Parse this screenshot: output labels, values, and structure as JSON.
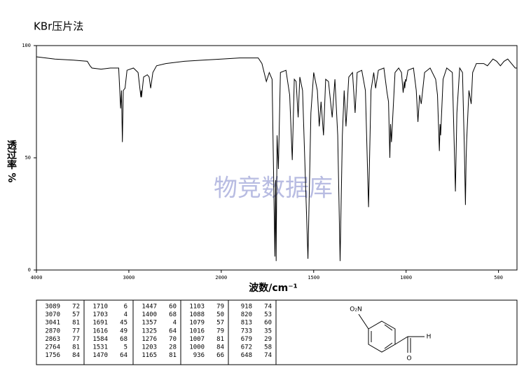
{
  "chart_data": {
    "type": "line",
    "title": "KBr压片法",
    "x_label": "波数/cm⁻¹",
    "y_label": "透过率 %",
    "watermark": "物竞数据库",
    "xlim": [
      4000,
      400
    ],
    "ylim": [
      0,
      100
    ],
    "xticks": [
      4000,
      3000,
      2000,
      1500,
      1000,
      500
    ],
    "yticks": [
      0,
      50,
      100
    ],
    "color": "#000000",
    "x": [
      4000,
      3800,
      3600,
      3450,
      3420,
      3400,
      3300,
      3200,
      3110,
      3089,
      3080,
      3070,
      3060,
      3041,
      3020,
      2950,
      2900,
      2870,
      2866,
      2863,
      2840,
      2800,
      2780,
      2764,
      2740,
      2700,
      2600,
      2400,
      2200,
      2000,
      1900,
      1800,
      1780,
      1756,
      1740,
      1725,
      1710,
      1706,
      1703,
      1698,
      1691,
      1680,
      1650,
      1630,
      1616,
      1605,
      1595,
      1584,
      1575,
      1560,
      1531,
      1515,
      1500,
      1480,
      1470,
      1460,
      1447,
      1435,
      1420,
      1400,
      1385,
      1370,
      1357,
      1345,
      1335,
      1325,
      1310,
      1290,
      1276,
      1265,
      1240,
      1220,
      1203,
      1190,
      1175,
      1165,
      1150,
      1120,
      1103,
      1095,
      1088,
      1084,
      1079,
      1060,
      1040,
      1025,
      1016,
      1010,
      1007,
      1003,
      1000,
      990,
      960,
      945,
      936,
      927,
      918,
      900,
      870,
      840,
      830,
      820,
      816,
      813,
      800,
      780,
      750,
      733,
      725,
      710,
      695,
      685,
      679,
      675,
      672,
      660,
      648,
      640,
      620,
      580,
      560,
      530,
      510,
      490,
      470,
      450,
      430,
      410,
      400
    ],
    "values": [
      95,
      94,
      93.5,
      93,
      91,
      90,
      89.5,
      90,
      90,
      72,
      80,
      57,
      80,
      81,
      89,
      90,
      88,
      77,
      80,
      77,
      86,
      87,
      86,
      81,
      88,
      91,
      92,
      93,
      93.5,
      94,
      94.5,
      94.5,
      92,
      84,
      88,
      85,
      6,
      40,
      4,
      60,
      45,
      88,
      89,
      78,
      49,
      85,
      84,
      68,
      86,
      80,
      5,
      70,
      88,
      80,
      64,
      75,
      60,
      85,
      84,
      68,
      85,
      60,
      4,
      60,
      80,
      64,
      86,
      88,
      70,
      88,
      89,
      80,
      28,
      80,
      88,
      81,
      89,
      90,
      79,
      75,
      50,
      65,
      57,
      88,
      90,
      88,
      79,
      84,
      81,
      85,
      84,
      89,
      90,
      80,
      66,
      78,
      74,
      88,
      90,
      85,
      78,
      53,
      65,
      60,
      85,
      90,
      88,
      35,
      70,
      90,
      88,
      55,
      29,
      50,
      58,
      80,
      74,
      88,
      92,
      92,
      91,
      94,
      93,
      91,
      93,
      94,
      92,
      90,
      90
    ]
  },
  "peak_table": [
    [
      [
        3089,
        72
      ],
      [
        3070,
        57
      ],
      [
        3041,
        81
      ],
      [
        2870,
        77
      ],
      [
        2863,
        77
      ],
      [
        2764,
        81
      ],
      [
        1756,
        84
      ]
    ],
    [
      [
        1710,
        6
      ],
      [
        1703,
        4
      ],
      [
        1691,
        45
      ],
      [
        1616,
        49
      ],
      [
        1584,
        68
      ],
      [
        1531,
        5
      ],
      [
        1470,
        64
      ]
    ],
    [
      [
        1447,
        60
      ],
      [
        1400,
        68
      ],
      [
        1357,
        4
      ],
      [
        1325,
        64
      ],
      [
        1276,
        70
      ],
      [
        1203,
        28
      ],
      [
        1165,
        81
      ]
    ],
    [
      [
        1103,
        79
      ],
      [
        1088,
        50
      ],
      [
        1079,
        57
      ],
      [
        1016,
        79
      ],
      [
        1007,
        81
      ],
      [
        1000,
        84
      ],
      [
        936,
        66
      ]
    ],
    [
      [
        918,
        74
      ],
      [
        820,
        53
      ],
      [
        813,
        60
      ],
      [
        733,
        35
      ],
      [
        679,
        29
      ],
      [
        672,
        58
      ],
      [
        648,
        74
      ]
    ]
  ],
  "structure": {
    "substituent": "O₂N",
    "aldehyde_h": "H",
    "aldehyde_o": "O"
  }
}
